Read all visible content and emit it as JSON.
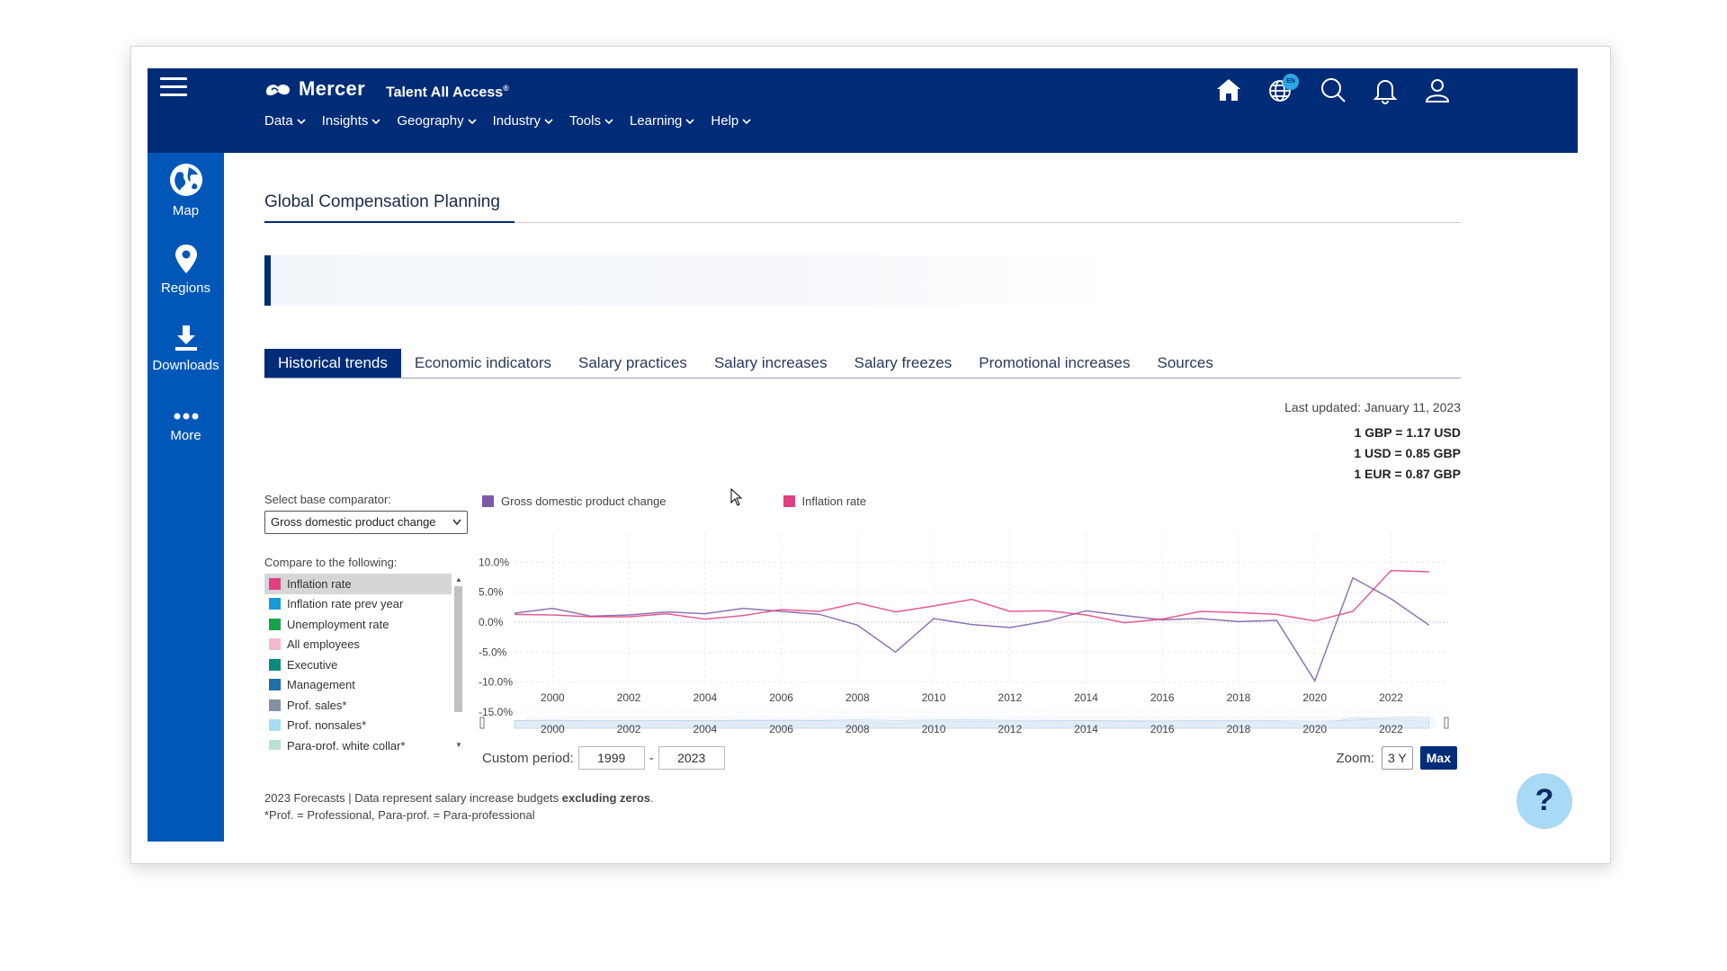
{
  "header": {
    "logo_text": "Mercer",
    "product": "Talent All Access",
    "product_mark": "®",
    "nav": [
      {
        "label": "Data"
      },
      {
        "label": "Insights"
      },
      {
        "label": "Geography"
      },
      {
        "label": "Industry"
      },
      {
        "label": "Tools"
      },
      {
        "label": "Learning"
      },
      {
        "label": "Help"
      }
    ],
    "language_badge": "EN",
    "icons": [
      "home-icon",
      "globe-icon",
      "search-icon",
      "bell-icon",
      "user-icon"
    ]
  },
  "sidebar": {
    "items": [
      {
        "label": "Map",
        "icon": "globe-icon"
      },
      {
        "label": "Regions",
        "icon": "map-pin-icon"
      },
      {
        "label": "Downloads",
        "icon": "download-icon"
      },
      {
        "label": "More",
        "icon": "more-dots-icon"
      }
    ]
  },
  "page": {
    "title": "Global Compensation Planning",
    "tabs": [
      {
        "label": "Historical trends",
        "active": true
      },
      {
        "label": "Economic indicators"
      },
      {
        "label": "Salary practices"
      },
      {
        "label": "Salary increases"
      },
      {
        "label": "Salary freezes"
      },
      {
        "label": "Promotional increases"
      },
      {
        "label": "Sources"
      }
    ],
    "last_updated": "Last updated: January 11, 2023",
    "rates": [
      "1 GBP = 1.17 USD",
      "1 USD = 0.85 GBP",
      "1 EUR = 0.87 GBP"
    ]
  },
  "controls": {
    "base_label": "Select base comparator:",
    "base_value": "Gross domestic product change",
    "compare_label": "Compare to the following:",
    "compare_items": [
      {
        "label": "Inflation rate",
        "color": "#e0407f",
        "selected": true
      },
      {
        "label": "Inflation rate prev year",
        "color": "#1a9ad6"
      },
      {
        "label": "Unemployment rate",
        "color": "#17a34a"
      },
      {
        "label": "All employees",
        "color": "#f4b9c9"
      },
      {
        "label": "Executive",
        "color": "#0f8a7e"
      },
      {
        "label": "Management",
        "color": "#1f6fa8"
      },
      {
        "label": "Prof. sales*",
        "color": "#8290a6"
      },
      {
        "label": "Prof. nonsales*",
        "color": "#a9dcf2"
      },
      {
        "label": "Para-prof. white collar*",
        "color": "#b8e2d8"
      }
    ],
    "custom_period_label": "Custom period:",
    "period_from": "1999",
    "period_sep": "-",
    "period_to": "2023",
    "zoom_label": "Zoom:",
    "zoom_options": [
      "3 Y",
      "Max"
    ],
    "zoom_active": "Max"
  },
  "chart_data": {
    "type": "line",
    "legend_position": "top-left",
    "grid": true,
    "xlim": [
      1999,
      2023.5
    ],
    "ylim": [
      -15,
      12
    ],
    "yticks": [
      10,
      5,
      0,
      -5,
      -10,
      -15
    ],
    "ytick_labels": [
      "10.0%",
      "5.0%",
      "0.0%",
      "-5.0%",
      "-10.0%",
      "-15.0%"
    ],
    "xticks": [
      2000,
      2002,
      2004,
      2006,
      2008,
      2010,
      2012,
      2014,
      2016,
      2018,
      2020,
      2022
    ],
    "x": [
      1999,
      2000,
      2001,
      2002,
      2003,
      2004,
      2005,
      2006,
      2007,
      2008,
      2009,
      2010,
      2011,
      2012,
      2013,
      2014,
      2015,
      2016,
      2017,
      2018,
      2019,
      2020,
      2021,
      2022,
      2023
    ],
    "series": [
      {
        "name": "Gross domestic product change",
        "color": "#7d5aa6",
        "values": [
          1.5,
          2.3,
          1.0,
          1.2,
          1.7,
          1.4,
          2.3,
          1.8,
          1.3,
          -0.5,
          -5.0,
          0.6,
          -0.4,
          -0.9,
          0.2,
          1.9,
          1.1,
          0.4,
          0.6,
          0.1,
          0.3,
          -9.8,
          7.4,
          3.9,
          -0.5
        ]
      },
      {
        "name": "Inflation rate",
        "color": "#e0407f",
        "values": [
          1.3,
          1.2,
          0.9,
          0.9,
          1.4,
          0.5,
          1.1,
          2.1,
          1.8,
          3.2,
          1.7,
          2.7,
          3.8,
          1.8,
          1.9,
          1.2,
          -0.1,
          0.5,
          1.8,
          1.6,
          1.3,
          0.2,
          1.8,
          8.6,
          8.4
        ]
      }
    ]
  },
  "footnote": {
    "line1_prefix": "2023 Forecasts | Data represent salary increase budgets ",
    "line1_bold": "excluding zeros",
    "line1_suffix": ".",
    "line2": "*Prof. = Professional, Para-prof. = Para-professional"
  },
  "help_label": "?"
}
